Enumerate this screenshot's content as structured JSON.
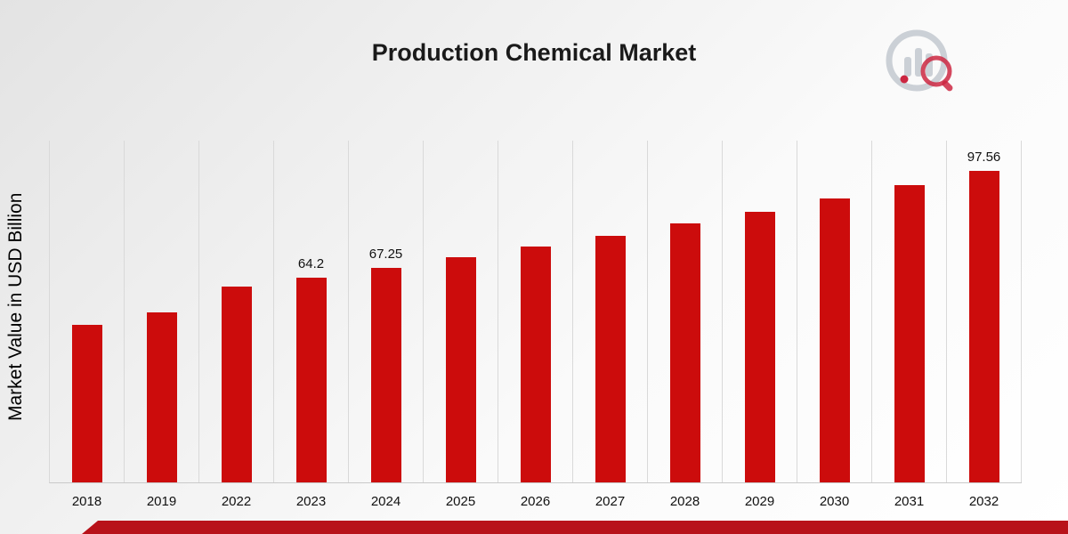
{
  "title": "Production Chemical Market",
  "ylabel": "Market Value in USD Billion",
  "colors": {
    "bar": "#cc0c0c",
    "footer_stripe": "#b8121a",
    "gridline": "#d9d9d9",
    "logo_gray": "#c7ccd3",
    "logo_red": "#c8102e"
  },
  "chart_data": {
    "type": "bar",
    "title": "Production Chemical Market",
    "xlabel": "",
    "ylabel": "Market Value in USD Billion",
    "categories": [
      "2018",
      "2019",
      "2022",
      "2023",
      "2024",
      "2025",
      "2026",
      "2027",
      "2028",
      "2029",
      "2030",
      "2031",
      "2032"
    ],
    "values": [
      49.2,
      53.35,
      61.3,
      64.2,
      67.25,
      70.45,
      73.8,
      77.3,
      80.96,
      84.81,
      88.85,
      93.08,
      97.56
    ],
    "data_labels": {
      "2023": "64.2",
      "2024": "67.25",
      "2032": "97.56"
    },
    "ylim": [
      0,
      107
    ],
    "grid": "vertical-only",
    "legend": "none"
  }
}
